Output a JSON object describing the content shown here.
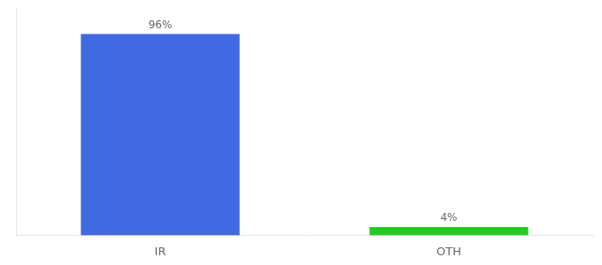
{
  "chart_data": {
    "type": "bar",
    "categories": [
      "IR",
      "OTH"
    ],
    "values": [
      96,
      4
    ],
    "value_labels": [
      "96%",
      "4%"
    ],
    "colors": [
      "#4169e1",
      "#22cc22"
    ],
    "ylim": [
      0,
      108
    ],
    "data_labels": true,
    "tick_labels": "x",
    "grid": false
  }
}
